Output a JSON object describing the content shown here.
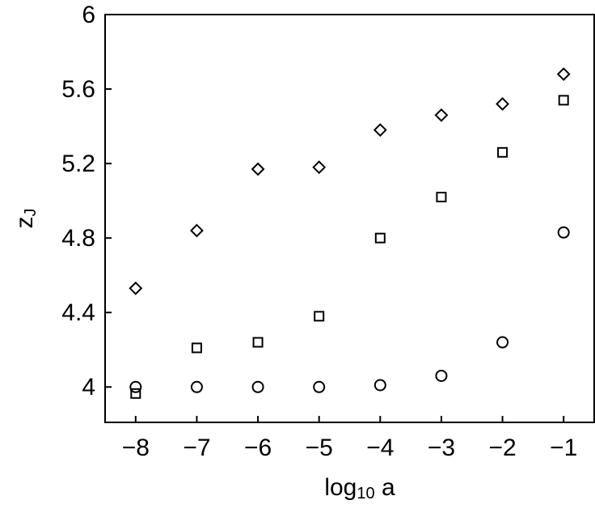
{
  "chart_data": {
    "type": "scatter",
    "xlabel": [
      "log",
      "10",
      " a"
    ],
    "ylabel": [
      "z",
      "J"
    ],
    "x": [
      -8,
      -7,
      -6,
      -5,
      -4,
      -3,
      -2,
      -1
    ],
    "series": [
      {
        "marker": "diamond",
        "color": "#000000",
        "values": [
          4.53,
          4.84,
          5.17,
          5.18,
          5.38,
          5.46,
          5.52,
          5.68
        ]
      },
      {
        "marker": "square",
        "color": "#000000",
        "values": [
          3.965,
          4.21,
          4.24,
          4.38,
          4.8,
          5.02,
          5.26,
          5.54
        ]
      },
      {
        "marker": "circle",
        "color": "#000000",
        "values": [
          4.0,
          4.0,
          4.0,
          4.0,
          4.01,
          4.06,
          4.24,
          4.83
        ]
      }
    ],
    "xlim": [
      -8.5,
      -0.5
    ],
    "ylim": [
      3.81,
      6.0
    ],
    "xticks": [
      {
        "value": -8,
        "label": "−8"
      },
      {
        "value": -7,
        "label": "−7"
      },
      {
        "value": -6,
        "label": "−6"
      },
      {
        "value": -5,
        "label": "−5"
      },
      {
        "value": -4,
        "label": "−4"
      },
      {
        "value": -3,
        "label": "−3"
      },
      {
        "value": -2,
        "label": "−2"
      },
      {
        "value": -1,
        "label": "−1"
      }
    ],
    "yticks": [
      4,
      4.4,
      4.8,
      5.2,
      5.6,
      6
    ]
  }
}
